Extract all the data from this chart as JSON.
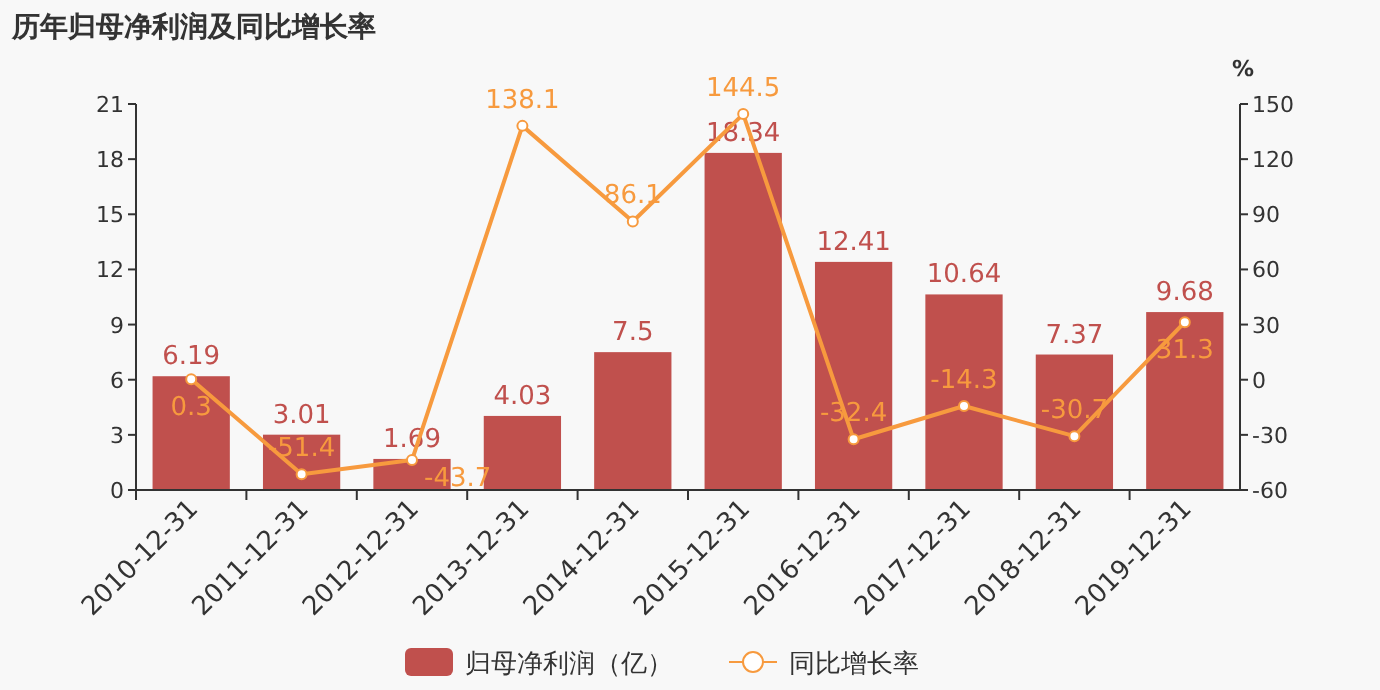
{
  "chart_data": {
    "type": "bar",
    "title": "历年归母净利润及同比增长率",
    "y2label": "%",
    "categories": [
      "2010-12-31",
      "2011-12-31",
      "2012-12-31",
      "2013-12-31",
      "2014-12-31",
      "2015-12-31",
      "2016-12-31",
      "2017-12-31",
      "2018-12-31",
      "2019-12-31"
    ],
    "series": [
      {
        "name": "归母净利润（亿）",
        "color": "#c0504d",
        "values": [
          6.19,
          3.01,
          1.69,
          4.03,
          7.5,
          18.34,
          12.41,
          10.64,
          7.37,
          9.68
        ]
      },
      {
        "name": "同比增长率",
        "type": "line",
        "axis": "y2",
        "color": "#f79a3e",
        "marker": "circle",
        "values": [
          0.3,
          -51.4,
          -43.7,
          138.1,
          86.1,
          144.5,
          -32.4,
          -14.3,
          -30.7,
          31.3
        ]
      }
    ],
    "ylim": [
      0,
      21
    ],
    "yticks": [
      0,
      3,
      6,
      9,
      12,
      15,
      18,
      21
    ],
    "y2lim": [
      -60,
      150
    ],
    "y2ticks": [
      -60,
      -30,
      0,
      30,
      60,
      90,
      120,
      150
    ],
    "data_labels": true,
    "legend": "bottom",
    "grid": false
  }
}
